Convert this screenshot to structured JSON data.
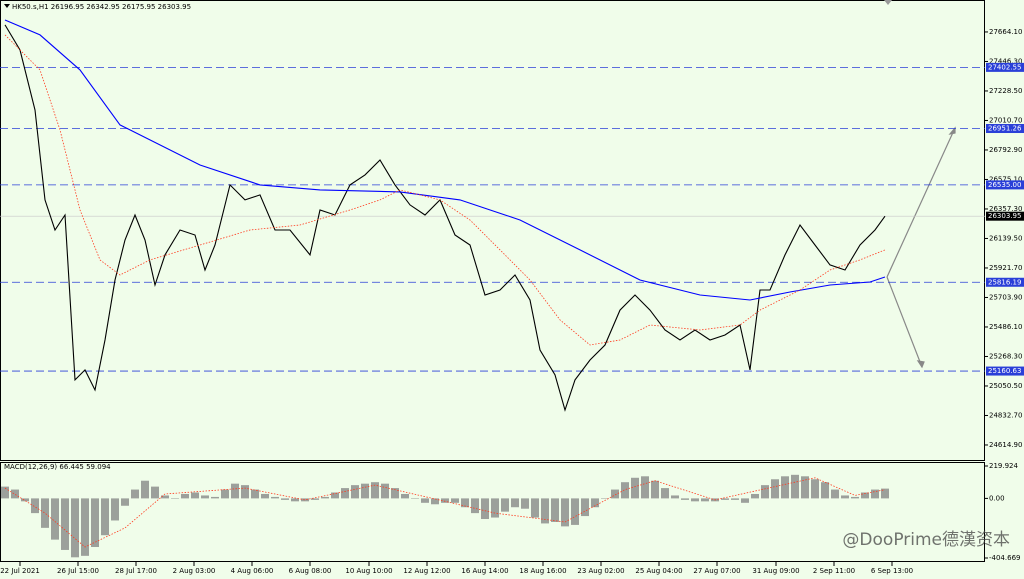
{
  "chart_data": [
    {
      "type": "line",
      "title": "HK50.s,H1  26196.95 26342.95 26175.95 26303.95",
      "xlim": [
        0,
        985
      ],
      "xticks": [
        {
          "value": 20,
          "label": "22 Jul 2021"
        },
        {
          "value": 78,
          "label": "26 Jul 15:00"
        },
        {
          "value": 136,
          "label": "28 Jul 17:00"
        },
        {
          "value": 194,
          "label": "2 Aug 03:00"
        },
        {
          "value": 252,
          "label": "4 Aug 06:00"
        },
        {
          "value": 310,
          "label": "6 Aug 08:00"
        },
        {
          "value": 369,
          "label": "10 Aug 10:00"
        },
        {
          "value": 427,
          "label": "12 Aug 12:00"
        },
        {
          "value": 485,
          "label": "16 Aug 14:00"
        },
        {
          "value": 543,
          "label": "18 Aug 16:00"
        },
        {
          "value": 601,
          "label": "23 Aug 02:00"
        },
        {
          "value": 659,
          "label": "25 Aug 04:00"
        },
        {
          "value": 717,
          "label": "27 Aug 07:00"
        },
        {
          "value": 776,
          "label": "31 Aug 09:00"
        },
        {
          "value": 834,
          "label": "2 Sep 11:00"
        },
        {
          "value": 892,
          "label": "6 Sep 13:00"
        }
      ],
      "ylim": [
        24504,
        27900
      ],
      "yticks": [
        {
          "value": 27664.1,
          "label": "27664.10"
        },
        {
          "value": 27446.3,
          "label": "27446.30"
        },
        {
          "value": 27228.5,
          "label": "27228.50"
        },
        {
          "value": 27010.7,
          "label": "27010.70"
        },
        {
          "value": 26792.9,
          "label": "26792.90"
        },
        {
          "value": 26575.1,
          "label": "26575.10"
        },
        {
          "value": 26357.3,
          "label": "26357.30"
        },
        {
          "value": 26139.5,
          "label": "26139.50"
        },
        {
          "value": 25921.7,
          "label": "25921.70"
        },
        {
          "value": 25703.9,
          "label": "25703.90"
        },
        {
          "value": 25486.1,
          "label": "25486.10"
        },
        {
          "value": 25268.3,
          "label": "25268.30"
        },
        {
          "value": 25050.5,
          "label": "25050.50"
        },
        {
          "value": 24832.7,
          "label": "24832.70"
        },
        {
          "value": 24614.9,
          "label": "24614.90"
        }
      ],
      "levels": [
        27402.55,
        26951.26,
        {
          "value": 26535,
          "label": "26535.00"
        },
        25816.19,
        25160.63
      ],
      "level_color": "#2a3fd8",
      "last_price": 26303.95,
      "series": [
        {
          "color": "#000000",
          "x": [
            5,
            20,
            35,
            45,
            55,
            65,
            75,
            85,
            95,
            105,
            115,
            125,
            135,
            145,
            155,
            165,
            180,
            195,
            205,
            215,
            230,
            245,
            260,
            275,
            290,
            310,
            320,
            335,
            350,
            365,
            380,
            395,
            410,
            425,
            440,
            455,
            470,
            485,
            500,
            515,
            530,
            540,
            555,
            565,
            575,
            590,
            605,
            620,
            635,
            650,
            665,
            680,
            695,
            710,
            725,
            740,
            750,
            760,
            770,
            785,
            800,
            815,
            830,
            845,
            860,
            875,
            885
          ],
          "values": [
            27716,
            27531,
            27088,
            26424,
            26202,
            26313,
            25095,
            25169,
            25021,
            25390,
            25833,
            26128,
            26313,
            26128,
            25796,
            26018,
            26202,
            26165,
            25907,
            26091,
            26535,
            26424,
            26461,
            26202,
            26202,
            26018,
            26350,
            26313,
            26535,
            26609,
            26719,
            26535,
            26387,
            26313,
            26424,
            26165,
            26091,
            25722,
            25759,
            25870,
            25685,
            25316,
            25132,
            24873,
            25095,
            25242,
            25353,
            25611,
            25722,
            25611,
            25464,
            25390,
            25464,
            25390,
            25427,
            25501,
            25169,
            25759,
            25759,
            26018,
            26239,
            26091,
            25944,
            25907,
            26091,
            26202,
            26303.95
          ]
        },
        {
          "color": "#0000ff",
          "x": [
            5,
            40,
            80,
            120,
            200,
            260,
            320,
            400,
            460,
            520,
            580,
            640,
            700,
            750,
            790,
            830,
            870,
            885
          ],
          "values": [
            27752.7,
            27642,
            27384,
            26978,
            26682,
            26535,
            26498,
            26483,
            26424,
            26276,
            26055,
            25833,
            25722,
            25685,
            25744,
            25796,
            25818,
            25855
          ]
        },
        {
          "color": "#ff3b1f",
          "dotted": true,
          "x": [
            5,
            40,
            60,
            80,
            100,
            120,
            150,
            200,
            250,
            300,
            350,
            380,
            400,
            440,
            470,
            500,
            530,
            560,
            590,
            620,
            650,
            700,
            740,
            760,
            800,
            830,
            860,
            885
          ],
          "values": [
            27642,
            27384,
            26941,
            26350,
            25981,
            25870,
            25981,
            26091,
            26202,
            26239,
            26350,
            26424,
            26498,
            26424,
            26276,
            26055,
            25833,
            25538,
            25353,
            25390,
            25501,
            25464,
            25501,
            25611,
            25759,
            25907,
            25981,
            26055
          ]
        }
      ]
    },
    {
      "type": "bar",
      "title": "MACD(12,26,9) 66.445 59.094",
      "color": "#808080",
      "xlim": [
        0,
        985
      ],
      "ylim": [
        -404.669,
        219.924
      ],
      "yticks": [
        219.924,
        {
          "value": 0,
          "label": "0.00"
        },
        -404.669
      ],
      "x": [
        5,
        15,
        25,
        35,
        45,
        55,
        65,
        75,
        85,
        95,
        105,
        115,
        125,
        135,
        145,
        155,
        165,
        175,
        185,
        195,
        205,
        215,
        225,
        235,
        245,
        255,
        265,
        275,
        285,
        295,
        305,
        315,
        325,
        335,
        345,
        355,
        365,
        375,
        385,
        395,
        405,
        415,
        425,
        435,
        445,
        455,
        465,
        475,
        485,
        495,
        505,
        515,
        525,
        535,
        545,
        555,
        565,
        575,
        585,
        595,
        605,
        615,
        625,
        635,
        645,
        655,
        665,
        675,
        685,
        695,
        705,
        715,
        725,
        735,
        745,
        755,
        765,
        775,
        785,
        795,
        805,
        815,
        825,
        835,
        845,
        855,
        865,
        875,
        885
      ],
      "values": [
        80,
        60,
        -20,
        -100,
        -200,
        -280,
        -350,
        -400,
        -390,
        -330,
        -250,
        -150,
        -50,
        60,
        120,
        80,
        20,
        0,
        30,
        40,
        20,
        10,
        60,
        100,
        90,
        60,
        30,
        10,
        -10,
        -20,
        -20,
        -10,
        10,
        40,
        70,
        90,
        100,
        110,
        100,
        70,
        30,
        0,
        -30,
        -40,
        -30,
        -30,
        -60,
        -100,
        -140,
        -130,
        -90,
        -60,
        -70,
        -130,
        -170,
        -160,
        -190,
        -180,
        -120,
        -60,
        0,
        60,
        110,
        140,
        150,
        120,
        70,
        20,
        -10,
        -20,
        -20,
        -20,
        -10,
        -10,
        -30,
        30,
        90,
        130,
        150,
        160,
        150,
        130,
        110,
        60,
        20,
        10,
        40,
        60,
        66.445
      ],
      "signal": {
        "color": "#ff3b1f",
        "x": [
          5,
          45,
          85,
          125,
          165,
          245,
          305,
          375,
          445,
          495,
          565,
          625,
          655,
          715,
          775,
          815,
          855,
          885
        ],
        "values": [
          70,
          -100,
          -330,
          -200,
          30,
          70,
          -10,
          90,
          -20,
          -100,
          -160,
          60,
          120,
          -10,
          80,
          140,
          20,
          59.094
        ]
      }
    }
  ],
  "watermark": "@DooPrime德漢资本"
}
